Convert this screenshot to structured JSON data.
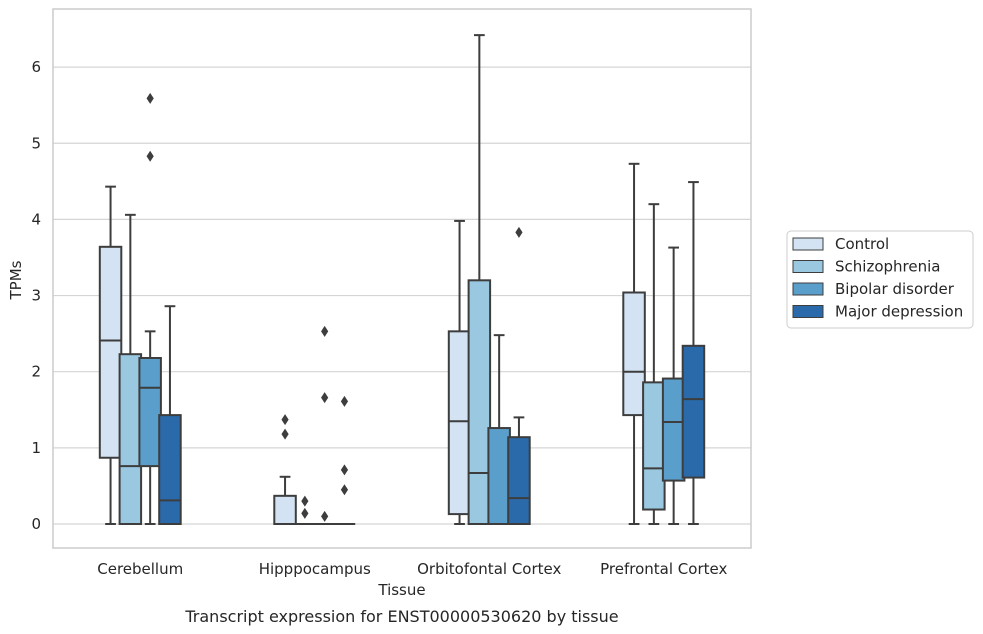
{
  "chart_data": {
    "type": "box",
    "xlabel": "Tissue",
    "ylabel": "TPMs",
    "caption": "Transcript expression for ENST00000530620 by tissue",
    "ylim": [
      -0.3,
      6.75
    ],
    "yticks": [
      0,
      1,
      2,
      3,
      4,
      5,
      6
    ],
    "grid": true,
    "legend_position": "right",
    "categories": [
      "Cerebellum",
      "Hipppocampus",
      "Orbitofontal Cortex",
      "Prefrontal Cortex"
    ],
    "series": [
      {
        "name": "Control",
        "color": "#d3e3f3",
        "boxes": [
          {
            "min": 0,
            "q1": 0.87,
            "median": 2.41,
            "q3": 3.64,
            "max": 4.43,
            "outliers": []
          },
          {
            "min": 0,
            "q1": 0,
            "median": 0,
            "q3": 0.37,
            "max": 0.62,
            "outliers": [
              1.18,
              1.37
            ]
          },
          {
            "min": 0,
            "q1": 0.13,
            "median": 1.35,
            "q3": 2.53,
            "max": 3.98,
            "outliers": []
          },
          {
            "min": 0,
            "q1": 1.43,
            "median": 2.0,
            "q3": 3.04,
            "max": 4.73,
            "outliers": []
          }
        ]
      },
      {
        "name": "Schizophrenia",
        "color": "#9ac8e0",
        "boxes": [
          {
            "min": 0,
            "q1": 0,
            "median": 0.76,
            "q3": 2.23,
            "max": 4.06,
            "outliers": []
          },
          {
            "min": 0,
            "q1": 0,
            "median": 0,
            "q3": 0,
            "max": 0,
            "outliers": [
              0.14,
              0.3
            ]
          },
          {
            "min": 0,
            "q1": 0,
            "median": 0.67,
            "q3": 3.2,
            "max": 6.42,
            "outliers": []
          },
          {
            "min": 0,
            "q1": 0.19,
            "median": 0.73,
            "q3": 1.86,
            "max": 4.2,
            "outliers": []
          }
        ]
      },
      {
        "name": "Bipolar disorder",
        "color": "#5a9ecc",
        "boxes": [
          {
            "min": 0,
            "q1": 0.76,
            "median": 1.79,
            "q3": 2.18,
            "max": 2.53,
            "outliers": [
              4.83,
              5.59
            ]
          },
          {
            "min": 0,
            "q1": 0,
            "median": 0,
            "q3": 0,
            "max": 0,
            "outliers": [
              0.1,
              1.66,
              2.53
            ]
          },
          {
            "min": 0,
            "q1": 0,
            "median": 0,
            "q3": 1.26,
            "max": 2.48,
            "outliers": []
          },
          {
            "min": 0,
            "q1": 0.57,
            "median": 1.34,
            "q3": 1.91,
            "max": 3.63,
            "outliers": []
          }
        ]
      },
      {
        "name": "Major depression",
        "color": "#2a6aaa",
        "boxes": [
          {
            "min": 0,
            "q1": 0,
            "median": 0.31,
            "q3": 1.43,
            "max": 2.86,
            "outliers": []
          },
          {
            "min": 0,
            "q1": 0,
            "median": 0,
            "q3": 0,
            "max": 0,
            "outliers": [
              0.45,
              0.71,
              1.61
            ]
          },
          {
            "min": 0,
            "q1": 0,
            "median": 0.34,
            "q3": 1.14,
            "max": 1.4,
            "outliers": [
              3.83
            ]
          },
          {
            "min": 0,
            "q1": 0.61,
            "median": 1.64,
            "q3": 2.34,
            "max": 4.49,
            "outliers": []
          }
        ]
      }
    ]
  }
}
